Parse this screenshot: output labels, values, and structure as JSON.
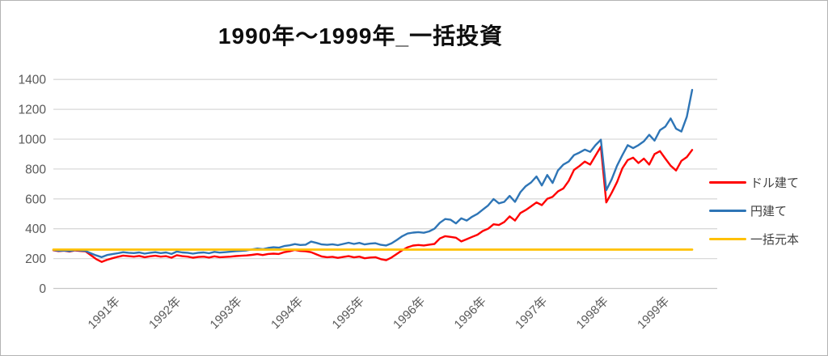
{
  "chart_data": {
    "type": "line",
    "title": "1990年～1999年_一括投資",
    "xlabel": "",
    "ylabel": "",
    "ylim": [
      0,
      1400
    ],
    "y_ticks": [
      0,
      200,
      400,
      600,
      800,
      1000,
      1200,
      1400
    ],
    "x_tick_labels": [
      "1991年",
      "1992年",
      "1993年",
      "1994年",
      "1995年",
      "1996年",
      "1996年",
      "1997年",
      "1998年",
      "1999年"
    ],
    "grid": true,
    "legend_position": "right",
    "series": [
      {
        "name": "ドル建て",
        "color": "#FF0000",
        "values": [
          256,
          250,
          253,
          247,
          255,
          251,
          248,
          222,
          196,
          178,
          192,
          202,
          212,
          220,
          216,
          213,
          218,
          209,
          215,
          219,
          213,
          216,
          206,
          223,
          216,
          213,
          206,
          211,
          213,
          207,
          215,
          209,
          211,
          213,
          217,
          219,
          221,
          225,
          230,
          224,
          231,
          233,
          231,
          243,
          249,
          258,
          251,
          249,
          243,
          228,
          214,
          209,
          212,
          205,
          211,
          216,
          208,
          213,
          202,
          207,
          209,
          196,
          189,
          207,
          232,
          256,
          276,
          287,
          291,
          288,
          293,
          298,
          335,
          350,
          345,
          340,
          315,
          330,
          345,
          360,
          385,
          400,
          430,
          425,
          445,
          483,
          455,
          505,
          525,
          550,
          576,
          558,
          600,
          614,
          650,
          670,
          720,
          794,
          820,
          850,
          830,
          890,
          950,
          576,
          640,
          712,
          805,
          860,
          876,
          840,
          870,
          830,
          900,
          920,
          870,
          822,
          790,
          855,
          880,
          928
        ]
      },
      {
        "name": "円建て",
        "color": "#2E75B6",
        "values": [
          258,
          252,
          255,
          250,
          257,
          254,
          251,
          235,
          221,
          210,
          224,
          230,
          236,
          243,
          239,
          237,
          241,
          233,
          239,
          243,
          237,
          241,
          231,
          247,
          241,
          239,
          233,
          239,
          241,
          236,
          245,
          240,
          243,
          246,
          250,
          252,
          255,
          261,
          267,
          263,
          271,
          276,
          273,
          284,
          289,
          297,
          291,
          293,
          314,
          305,
          295,
          292,
          296,
          290,
          298,
          306,
          298,
          305,
          295,
          300,
          303,
          292,
          288,
          302,
          325,
          350,
          368,
          374,
          377,
          373,
          382,
          400,
          440,
          465,
          460,
          436,
          470,
          455,
          480,
          500,
          528,
          556,
          599,
          570,
          580,
          620,
          580,
          645,
          685,
          710,
          750,
          690,
          760,
          707,
          790,
          830,
          850,
          893,
          910,
          930,
          915,
          960,
          996,
          658,
          730,
          822,
          893,
          960,
          940,
          960,
          986,
          1029,
          990,
          1060,
          1084,
          1139,
          1070,
          1051,
          1150,
          1330
        ]
      },
      {
        "name": "一括元本",
        "color": "#FFC000",
        "values": [
          260,
          260
        ]
      }
    ]
  },
  "legend": {
    "items": [
      {
        "label": "ドル建て",
        "color": "#FF0000"
      },
      {
        "label": "円建て",
        "color": "#2E75B6"
      },
      {
        "label": "一括元本",
        "color": "#FFC000"
      }
    ]
  },
  "style": {
    "grid_color": "#D9D9D9",
    "axis_line_color": "#C6C6C6",
    "tick_label_color": "#595959",
    "title_color": "#0d0d0d"
  }
}
